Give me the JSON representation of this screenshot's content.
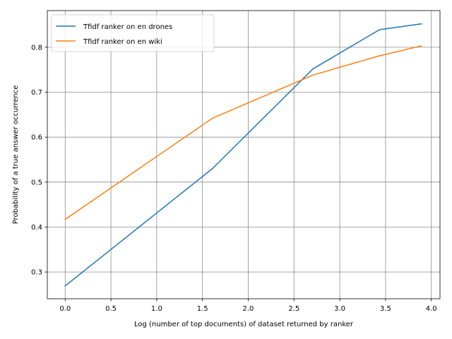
{
  "chart_data": {
    "type": "line",
    "title": "",
    "xlabel": "Log (number of top documents) of dataset returned by ranker",
    "ylabel": "Probability of a true answer occurrence",
    "xlim": [
      -0.195,
      4.095
    ],
    "ylim": [
      0.2405,
      0.8815
    ],
    "xticks": [
      0.0,
      0.5,
      1.0,
      1.5,
      2.0,
      2.5,
      3.0,
      3.5,
      4.0
    ],
    "xtick_labels": [
      "0.0",
      "0.5",
      "1.0",
      "1.5",
      "2.0",
      "2.5",
      "3.0",
      "3.5",
      "4.0"
    ],
    "yticks": [
      0.3,
      0.4,
      0.5,
      0.6,
      0.7,
      0.8
    ],
    "ytick_labels": [
      "0.3",
      "0.4",
      "0.5",
      "0.6",
      "0.7",
      "0.8"
    ],
    "grid": true,
    "legend_position": "top-left",
    "series": [
      {
        "name": "Tfidf ranker on en drones",
        "color": "#1f77b4",
        "x": [
          0.0,
          1.609,
          2.708,
          3.434,
          3.892
        ],
        "y": [
          0.269,
          0.53,
          0.752,
          0.839,
          0.852
        ]
      },
      {
        "name": "Tfidf ranker on en wiki",
        "color": "#ff7f0e",
        "x": [
          0.0,
          1.609,
          2.708,
          3.434,
          3.892
        ],
        "y": [
          0.417,
          0.642,
          0.738,
          0.781,
          0.803
        ]
      }
    ]
  }
}
